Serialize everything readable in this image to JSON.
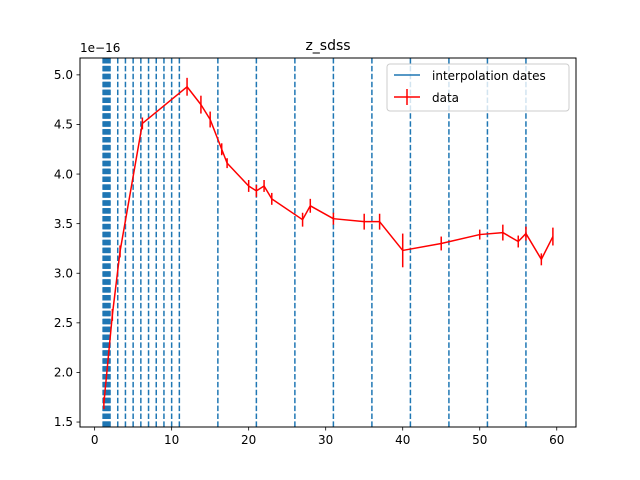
{
  "chart_data": {
    "type": "line",
    "title": "z_sdss",
    "xlabel": "",
    "ylabel": "",
    "y_offset_label": "1e−16",
    "xlim": [
      -1.9,
      62.5
    ],
    "ylim": [
      1.45,
      5.17
    ],
    "x_ticks": [
      0,
      10,
      20,
      30,
      40,
      50,
      60
    ],
    "x_tick_labels": [
      "0",
      "10",
      "20",
      "30",
      "40",
      "50",
      "60"
    ],
    "y_ticks": [
      1.5,
      2.0,
      2.5,
      3.0,
      3.5,
      4.0,
      4.5,
      5.0
    ],
    "y_tick_labels": [
      "1.5",
      "2.0",
      "2.5",
      "3.0",
      "3.5",
      "4.0",
      "4.5",
      "5.0"
    ],
    "grid": false,
    "legend_position": "top-right",
    "interpolation_dates": [
      1.1,
      1.2,
      1.3,
      1.4,
      1.5,
      1.6,
      1.7,
      1.8,
      1.9,
      2.0,
      3,
      4,
      5,
      6,
      7,
      8,
      9,
      10,
      11,
      16,
      21,
      26,
      31,
      36,
      41,
      46,
      51,
      56
    ],
    "series": [
      {
        "name": "interpolation dates",
        "color": "#1f77b4",
        "style": "dashed-vertical"
      },
      {
        "name": "data",
        "color": "#ff0000",
        "x": [
          1.2,
          2.3,
          3.3,
          6.2,
          12.0,
          13.8,
          15.0,
          16.5,
          17.2,
          20.0,
          21.0,
          22.0,
          23.0,
          27.0,
          28.0,
          31.0,
          35.0,
          37.0,
          40.0,
          45.0,
          50.0,
          53.0,
          55.0,
          56.0,
          58.0,
          59.5
        ],
        "y": [
          1.69,
          2.58,
          3.22,
          4.51,
          4.88,
          4.7,
          4.55,
          4.25,
          4.11,
          3.88,
          3.83,
          3.88,
          3.75,
          3.54,
          3.68,
          3.55,
          3.52,
          3.52,
          3.23,
          3.3,
          3.39,
          3.41,
          3.32,
          3.4,
          3.14,
          3.37
        ],
        "yerr": [
          0.06,
          0.06,
          0.06,
          0.06,
          0.09,
          0.09,
          0.08,
          0.06,
          0.05,
          0.06,
          0.06,
          0.06,
          0.06,
          0.07,
          0.07,
          0.06,
          0.08,
          0.08,
          0.17,
          0.07,
          0.05,
          0.08,
          0.06,
          0.07,
          0.06,
          0.09
        ]
      }
    ]
  }
}
